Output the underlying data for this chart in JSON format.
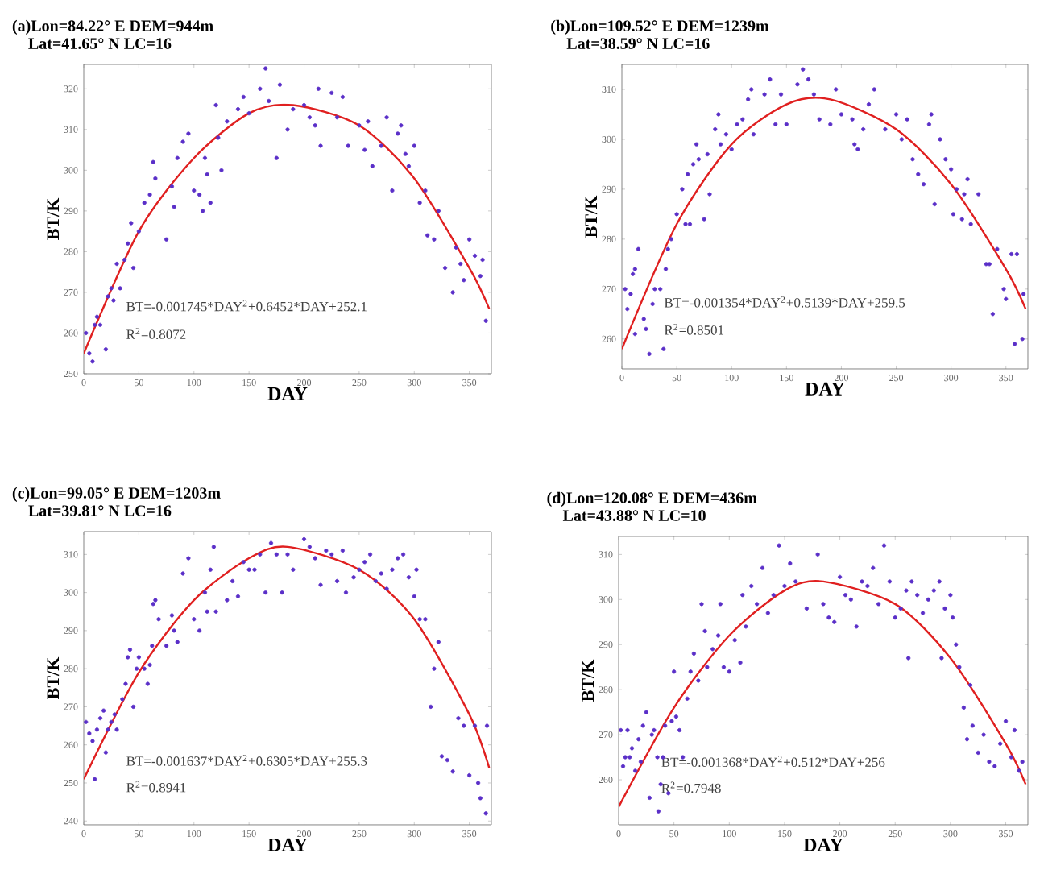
{
  "chart_data": [
    {
      "type": "scatter",
      "title": "(a)Lon=84.22° E    DEM=944m",
      "subtitle": "Lat=41.65° N    LC=16",
      "xlabel": "DAY",
      "ylabel": "BT/K",
      "grid": false,
      "xlim": [
        0,
        370
      ],
      "ylim": [
        250,
        326
      ],
      "xticks": [
        0,
        50,
        100,
        150,
        200,
        250,
        300,
        350
      ],
      "yticks": [
        250,
        260,
        270,
        280,
        290,
        300,
        310,
        320
      ],
      "annotations": [
        "BT=-0.001745*DAY$^{2}$+0.6452*DAY+252.1",
        "R$^{2}$=0.8072"
      ],
      "series": [
        {
          "marker": "circle",
          "color": "#5a2fc8",
          "x": [
            2,
            5,
            8,
            10,
            12,
            15,
            20,
            22,
            25,
            27,
            30,
            33,
            37,
            40,
            43,
            45,
            50,
            55,
            60,
            63,
            65,
            75,
            80,
            82,
            85,
            90,
            95,
            100,
            105,
            108,
            110,
            112,
            115,
            120,
            122,
            125,
            130,
            140,
            145,
            150,
            160,
            165,
            168,
            175,
            178,
            185,
            190,
            200,
            205,
            210,
            213,
            215,
            225,
            230,
            235,
            240,
            250,
            255,
            258,
            262,
            270,
            275,
            280,
            285,
            288,
            292,
            295,
            300,
            305,
            310,
            312,
            318,
            322,
            328,
            335,
            338,
            342,
            345,
            350,
            355,
            360,
            362,
            365
          ],
          "values": [
            260,
            255,
            253,
            262,
            264,
            262,
            256,
            269,
            271,
            268,
            277,
            271,
            278,
            282,
            287,
            276,
            285,
            292,
            294,
            302,
            298,
            283,
            296,
            291,
            303,
            307,
            309,
            295,
            294,
            290,
            303,
            299,
            292,
            316,
            308,
            300,
            312,
            315,
            318,
            314,
            320,
            325,
            317,
            303,
            321,
            310,
            315,
            316,
            313,
            311,
            320,
            306,
            319,
            313,
            318,
            306,
            311,
            305,
            312,
            301,
            306,
            313,
            295,
            309,
            311,
            304,
            301,
            306,
            292,
            295,
            284,
            283,
            290,
            276,
            270,
            281,
            277,
            273,
            283,
            279,
            274,
            278,
            263
          ]
        },
        {
          "type": "line",
          "marker": "none",
          "color": "#e02020",
          "x": [
            0,
            50,
            100,
            150,
            190,
            250,
            300,
            350,
            368
          ],
          "values": [
            255,
            285,
            303,
            314,
            316,
            311,
            298,
            276,
            266
          ]
        }
      ]
    },
    {
      "type": "scatter",
      "title": "(b)Lon=109.52° E    DEM=1239m",
      "subtitle": "Lat=38.59° N    LC=16",
      "xlabel": "DAY",
      "ylabel": "BT/K",
      "grid": false,
      "xlim": [
        0,
        370
      ],
      "ylim": [
        254,
        315
      ],
      "xticks": [
        0,
        50,
        100,
        150,
        200,
        250,
        300,
        350
      ],
      "yticks": [
        260,
        270,
        280,
        290,
        300,
        310
      ],
      "annotations": [
        "BT=-0.001354*DAY$^{2}$+0.5139*DAY+259.5",
        "R$^{2}$=0.8501"
      ],
      "series": [
        {
          "marker": "circle",
          "color": "#5a2fc8",
          "x": [
            3,
            5,
            8,
            10,
            12,
            12,
            15,
            20,
            22,
            25,
            28,
            30,
            35,
            38,
            40,
            42,
            45,
            50,
            55,
            58,
            60,
            62,
            65,
            68,
            70,
            75,
            78,
            80,
            85,
            88,
            90,
            95,
            100,
            105,
            110,
            115,
            118,
            120,
            130,
            135,
            140,
            145,
            150,
            160,
            165,
            170,
            175,
            180,
            190,
            195,
            200,
            210,
            212,
            215,
            220,
            225,
            230,
            240,
            250,
            255,
            260,
            265,
            270,
            275,
            280,
            282,
            285,
            290,
            295,
            300,
            302,
            305,
            310,
            312,
            315,
            318,
            325,
            332,
            335,
            338,
            342,
            348,
            350,
            355,
            358,
            360,
            365,
            366
          ],
          "values": [
            270,
            266,
            269,
            273,
            274,
            261,
            278,
            264,
            262,
            257,
            267,
            270,
            270,
            258,
            274,
            278,
            280,
            285,
            290,
            283,
            293,
            283,
            295,
            299,
            296,
            284,
            297,
            289,
            302,
            305,
            299,
            301,
            298,
            303,
            304,
            308,
            310,
            301,
            309,
            312,
            303,
            309,
            303,
            311,
            314,
            312,
            309,
            304,
            303,
            310,
            305,
            304,
            299,
            298,
            302,
            307,
            310,
            302,
            305,
            300,
            304,
            296,
            293,
            291,
            303,
            305,
            287,
            300,
            296,
            294,
            285,
            290,
            284,
            289,
            292,
            283,
            289,
            275,
            275,
            265,
            278,
            270,
            268,
            277,
            259,
            277,
            260,
            269
          ]
        },
        {
          "type": "line",
          "marker": "none",
          "color": "#e02020",
          "x": [
            0,
            50,
            100,
            150,
            190,
            250,
            300,
            350,
            368
          ],
          "values": [
            258,
            283,
            299,
            307,
            308,
            302,
            291,
            274,
            266
          ]
        }
      ]
    },
    {
      "type": "scatter",
      "title": "(c)Lon=99.05° E    DEM=1203m",
      "subtitle": "Lat=39.81° N    LC=16",
      "xlabel": "DAY",
      "ylabel": "BT/K",
      "grid": false,
      "xlim": [
        0,
        370
      ],
      "ylim": [
        239,
        316
      ],
      "xticks": [
        0,
        50,
        100,
        150,
        200,
        250,
        300,
        350
      ],
      "yticks": [
        240,
        250,
        260,
        270,
        280,
        290,
        300,
        310
      ],
      "annotations": [
        "BT=-0.001637*DAY$^{2}$+0.6305*DAY+255.3",
        "R$^{2}$=0.8941"
      ],
      "series": [
        {
          "marker": "circle",
          "color": "#5a2fc8",
          "x": [
            2,
            5,
            8,
            10,
            12,
            15,
            18,
            20,
            22,
            25,
            28,
            30,
            35,
            38,
            40,
            42,
            45,
            48,
            50,
            55,
            58,
            60,
            62,
            63,
            65,
            68,
            75,
            80,
            82,
            85,
            90,
            95,
            100,
            105,
            110,
            112,
            115,
            118,
            120,
            130,
            135,
            140,
            145,
            150,
            155,
            160,
            165,
            170,
            175,
            180,
            185,
            190,
            200,
            205,
            210,
            215,
            220,
            225,
            230,
            235,
            238,
            245,
            250,
            255,
            260,
            265,
            270,
            275,
            280,
            285,
            290,
            295,
            300,
            302,
            305,
            310,
            315,
            318,
            322,
            325,
            330,
            335,
            340,
            345,
            350,
            355,
            358,
            360,
            365,
            366
          ],
          "values": [
            266,
            263,
            261,
            251,
            264,
            267,
            269,
            258,
            264,
            266,
            268,
            264,
            272,
            276,
            283,
            285,
            270,
            280,
            283,
            280,
            276,
            281,
            286,
            297,
            298,
            293,
            286,
            294,
            290,
            287,
            305,
            309,
            293,
            290,
            300,
            295,
            306,
            312,
            295,
            298,
            303,
            299,
            308,
            306,
            306,
            310,
            300,
            313,
            310,
            300,
            310,
            306,
            314,
            312,
            309,
            302,
            311,
            310,
            303,
            311,
            300,
            304,
            306,
            308,
            310,
            303,
            305,
            301,
            306,
            309,
            310,
            304,
            299,
            306,
            293,
            293,
            270,
            280,
            287,
            257,
            256,
            253,
            267,
            265,
            252,
            265,
            250,
            246,
            242,
            265
          ]
        },
        {
          "type": "line",
          "marker": "none",
          "color": "#e02020",
          "x": [
            0,
            50,
            100,
            150,
            185,
            250,
            300,
            350,
            368
          ],
          "values": [
            251,
            279,
            298,
            309,
            312,
            306,
            293,
            268,
            254
          ]
        }
      ]
    },
    {
      "type": "scatter",
      "title": "(d)Lon=120.08° E    DEM=436m",
      "subtitle": "Lat=43.88° N    LC=10",
      "xlabel": "DAY",
      "ylabel": "BT/K",
      "grid": false,
      "xlim": [
        0,
        370
      ],
      "ylim": [
        250,
        314
      ],
      "xticks": [
        0,
        50,
        100,
        150,
        200,
        250,
        300,
        350
      ],
      "yticks": [
        260,
        270,
        280,
        290,
        300,
        310
      ],
      "annotations": [
        "BT=-0.001368*DAY$^{2}$+0.512*DAY+256",
        "R$^{2}$=0.7948"
      ],
      "series": [
        {
          "marker": "circle",
          "color": "#5a2fc8",
          "x": [
            2,
            4,
            6,
            8,
            10,
            12,
            15,
            18,
            20,
            22,
            25,
            28,
            30,
            32,
            35,
            36,
            38,
            40,
            42,
            45,
            48,
            50,
            52,
            55,
            58,
            62,
            65,
            68,
            72,
            75,
            78,
            80,
            85,
            90,
            92,
            95,
            100,
            105,
            110,
            112,
            115,
            120,
            125,
            130,
            135,
            140,
            145,
            150,
            155,
            160,
            170,
            180,
            185,
            190,
            195,
            200,
            205,
            210,
            215,
            220,
            225,
            230,
            235,
            240,
            245,
            250,
            255,
            260,
            262,
            265,
            270,
            275,
            280,
            285,
            290,
            292,
            295,
            300,
            302,
            305,
            308,
            312,
            315,
            318,
            320,
            325,
            330,
            335,
            340,
            345,
            350,
            355,
            358,
            362,
            365
          ],
          "values": [
            271,
            263,
            265,
            271,
            265,
            267,
            262,
            269,
            264,
            272,
            275,
            256,
            270,
            271,
            265,
            253,
            259,
            265,
            272,
            257,
            273,
            284,
            274,
            271,
            265,
            278,
            284,
            288,
            282,
            299,
            293,
            285,
            289,
            292,
            299,
            285,
            284,
            291,
            286,
            301,
            294,
            303,
            299,
            307,
            297,
            301,
            312,
            303,
            308,
            304,
            298,
            310,
            299,
            296,
            295,
            305,
            301,
            300,
            294,
            304,
            303,
            307,
            299,
            312,
            304,
            296,
            298,
            302,
            287,
            304,
            301,
            297,
            300,
            302,
            304,
            287,
            298,
            301,
            296,
            290,
            285,
            276,
            269,
            281,
            272,
            266,
            270,
            264,
            263,
            268,
            273,
            265,
            271,
            262,
            264
          ]
        },
        {
          "type": "line",
          "marker": "none",
          "color": "#e02020",
          "x": [
            0,
            50,
            100,
            150,
            185,
            250,
            300,
            350,
            368
          ],
          "values": [
            254,
            276,
            292,
            302,
            304,
            299,
            287,
            268,
            259
          ]
        }
      ]
    }
  ]
}
